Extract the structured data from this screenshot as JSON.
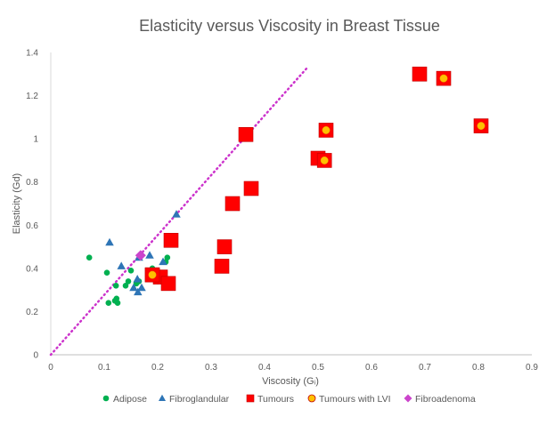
{
  "chart_data": {
    "type": "scatter",
    "title": "Elasticity versus Viscosity in Breast Tissue",
    "xlabel": "Viscosity (Gᵢ)",
    "ylabel": "Elasticity (Gd)",
    "xlim": [
      0,
      0.9
    ],
    "ylim": [
      0,
      1.4
    ],
    "x_ticks": [
      0,
      0.1,
      0.2,
      0.3,
      0.4,
      0.5,
      0.6,
      0.7,
      0.8,
      0.9
    ],
    "y_ticks": [
      0,
      0.2,
      0.4,
      0.6,
      0.8,
      1,
      1.2,
      1.4
    ],
    "x_tick_labels": [
      "0",
      "0.1",
      "0.2",
      "0.3",
      "0.4",
      "0.5",
      "0.6",
      "0.7",
      "0.8",
      "0.9"
    ],
    "y_tick_labels": [
      "0",
      "0.2",
      "0.4",
      "0.6",
      "0.8",
      "1",
      "1.2",
      "1.4"
    ],
    "grid": false,
    "legend_position": "bottom",
    "series": [
      {
        "name": "Adipose",
        "marker": "circle",
        "color": "#00b050",
        "points": [
          {
            "x": 0.072,
            "y": 0.45
          },
          {
            "x": 0.105,
            "y": 0.38
          },
          {
            "x": 0.108,
            "y": 0.24
          },
          {
            "x": 0.12,
            "y": 0.25
          },
          {
            "x": 0.123,
            "y": 0.26
          },
          {
            "x": 0.125,
            "y": 0.24
          },
          {
            "x": 0.122,
            "y": 0.32
          },
          {
            "x": 0.14,
            "y": 0.32
          },
          {
            "x": 0.145,
            "y": 0.34
          },
          {
            "x": 0.15,
            "y": 0.39
          },
          {
            "x": 0.16,
            "y": 0.33
          },
          {
            "x": 0.165,
            "y": 0.34
          },
          {
            "x": 0.19,
            "y": 0.4
          },
          {
            "x": 0.205,
            "y": 0.38
          },
          {
            "x": 0.215,
            "y": 0.43
          },
          {
            "x": 0.218,
            "y": 0.45
          },
          {
            "x": 0.2,
            "y": 0.34
          }
        ]
      },
      {
        "name": "Fibroglandular",
        "marker": "triangle",
        "color": "#2e75b6",
        "points": [
          {
            "x": 0.11,
            "y": 0.52
          },
          {
            "x": 0.132,
            "y": 0.41
          },
          {
            "x": 0.155,
            "y": 0.31
          },
          {
            "x": 0.162,
            "y": 0.35
          },
          {
            "x": 0.163,
            "y": 0.29
          },
          {
            "x": 0.165,
            "y": 0.45
          },
          {
            "x": 0.17,
            "y": 0.31
          },
          {
            "x": 0.185,
            "y": 0.46
          },
          {
            "x": 0.21,
            "y": 0.43
          },
          {
            "x": 0.235,
            "y": 0.65
          }
        ]
      },
      {
        "name": "Tumours",
        "marker": "square",
        "color": "#ff0000",
        "points": [
          {
            "x": 0.19,
            "y": 0.37
          },
          {
            "x": 0.205,
            "y": 0.36
          },
          {
            "x": 0.22,
            "y": 0.33
          },
          {
            "x": 0.225,
            "y": 0.53
          },
          {
            "x": 0.32,
            "y": 0.41
          },
          {
            "x": 0.325,
            "y": 0.5
          },
          {
            "x": 0.34,
            "y": 0.7
          },
          {
            "x": 0.365,
            "y": 1.02
          },
          {
            "x": 0.375,
            "y": 0.77
          },
          {
            "x": 0.5,
            "y": 0.91
          },
          {
            "x": 0.69,
            "y": 1.3
          }
        ]
      },
      {
        "name": "Tumours with LVI",
        "marker": "square-dot",
        "color": "#ffc000",
        "points": [
          {
            "x": 0.19,
            "y": 0.37
          },
          {
            "x": 0.512,
            "y": 0.9
          },
          {
            "x": 0.515,
            "y": 1.04
          },
          {
            "x": 0.735,
            "y": 1.28
          },
          {
            "x": 0.805,
            "y": 1.06
          }
        ]
      },
      {
        "name": "Fibroadenoma",
        "marker": "diamond",
        "color": "#cc44cc",
        "points": [
          {
            "x": 0.168,
            "y": 0.46
          }
        ]
      }
    ],
    "trendline": {
      "style": "dotted",
      "color": "#cc33cc",
      "from": {
        "x": 0,
        "y": 0
      },
      "to": {
        "x": 0.48,
        "y": 1.33
      }
    }
  }
}
